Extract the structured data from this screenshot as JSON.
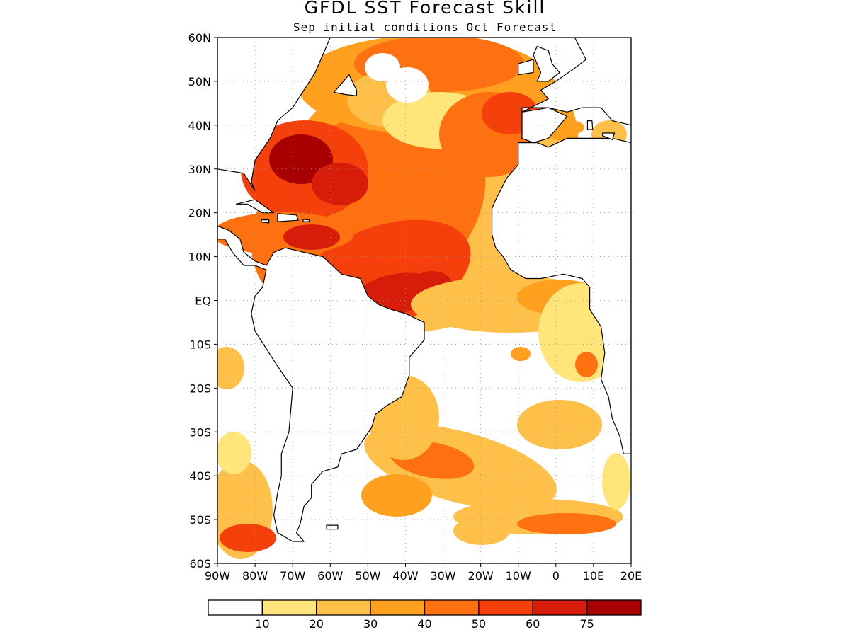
{
  "title": "GFDL SST Forecast Skill",
  "subtitle": "Sep initial conditions  Oct Forecast",
  "colors": {
    "bins": [
      "#ffffff",
      "#ffe57a",
      "#ffc04a",
      "#ffa01e",
      "#ff7010",
      "#f5400c",
      "#d81c0a",
      "#a80000"
    ],
    "coast": "#000000",
    "grid": "#999999"
  },
  "map": {
    "lon_range": [
      -90,
      20
    ],
    "lat_range": [
      -60,
      60
    ],
    "x_ticks": [
      {
        "value": -90,
        "label": "90W"
      },
      {
        "value": -80,
        "label": "80W"
      },
      {
        "value": -70,
        "label": "70W"
      },
      {
        "value": -60,
        "label": "60W"
      },
      {
        "value": -50,
        "label": "50W"
      },
      {
        "value": -40,
        "label": "40W"
      },
      {
        "value": -30,
        "label": "30W"
      },
      {
        "value": -20,
        "label": "20W"
      },
      {
        "value": -10,
        "label": "10W"
      },
      {
        "value": 0,
        "label": "0"
      },
      {
        "value": 10,
        "label": "10E"
      },
      {
        "value": 20,
        "label": "20E"
      }
    ],
    "y_ticks": [
      {
        "value": 60,
        "label": "60N"
      },
      {
        "value": 50,
        "label": "50N"
      },
      {
        "value": 40,
        "label": "40N"
      },
      {
        "value": 30,
        "label": "30N"
      },
      {
        "value": 20,
        "label": "20N"
      },
      {
        "value": 10,
        "label": "10N"
      },
      {
        "value": 0,
        "label": "EQ"
      },
      {
        "value": -10,
        "label": "10S"
      },
      {
        "value": -20,
        "label": "20S"
      },
      {
        "value": -30,
        "label": "30S"
      },
      {
        "value": -40,
        "label": "40S"
      },
      {
        "value": -50,
        "label": "50S"
      },
      {
        "value": -60,
        "label": "60S"
      }
    ],
    "grid": "dotted"
  },
  "legend": {
    "labels": [
      "10",
      "20",
      "30",
      "40",
      "50",
      "60",
      "75"
    ]
  }
}
